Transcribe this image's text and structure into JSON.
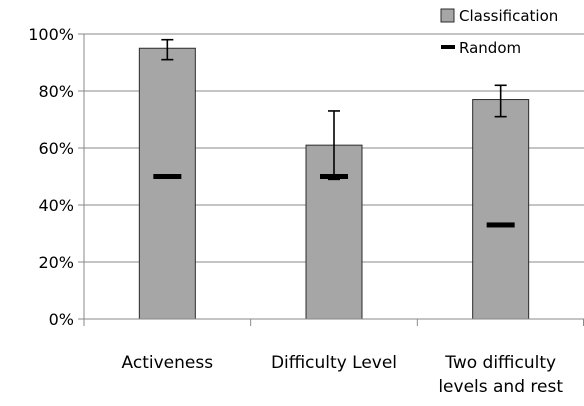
{
  "chart_data": {
    "type": "bar",
    "title": "",
    "xlabel": "",
    "ylabel": "",
    "ylim": [
      0,
      100
    ],
    "y_ticks": [
      0,
      20,
      40,
      60,
      80,
      100
    ],
    "y_tick_labels": [
      "0%",
      "20%",
      "40%",
      "60%",
      "80%",
      "100%"
    ],
    "categories": [
      [
        "Activeness"
      ],
      [
        "Difficulty Level"
      ],
      [
        "Two difficulty",
        "levels and rest"
      ]
    ],
    "series": [
      {
        "name": "Classification",
        "values": [
          95,
          61,
          77
        ],
        "error_low": [
          91,
          49,
          71
        ],
        "error_high": [
          98,
          73,
          82
        ]
      },
      {
        "name": "Random",
        "values": [
          50,
          50,
          33
        ]
      }
    ],
    "legend": {
      "position": "top-right",
      "items": [
        "Classification",
        "Random"
      ]
    },
    "grid": true,
    "colors": {
      "bar_fill": "#A6A6A6",
      "bar_stroke": "#2b2b2b",
      "random_marker": "#000000",
      "grid": "#8a8a8a",
      "axis": "#8a8a8a"
    }
  }
}
